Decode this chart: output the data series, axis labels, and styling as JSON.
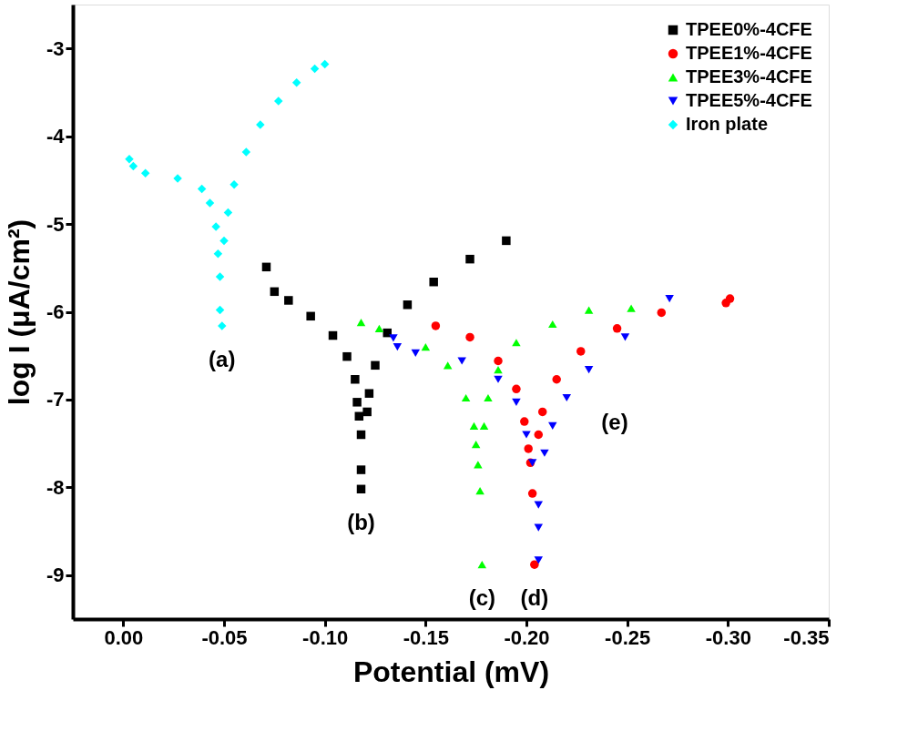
{
  "chart_data": {
    "type": "scatter",
    "xlabel": "Potential (mV)",
    "ylabel": "log I (μA/cm²)",
    "xlim": [
      0.025,
      -0.35
    ],
    "ylim": [
      -9.5,
      -2.5
    ],
    "xticks": [
      {
        "value": 0,
        "label": "0.00"
      },
      {
        "value": -0.05,
        "label": "-0.05"
      },
      {
        "value": -0.1,
        "label": "-0.10"
      },
      {
        "value": -0.15,
        "label": "-0.15"
      },
      {
        "value": -0.2,
        "label": "-0.20"
      },
      {
        "value": -0.25,
        "label": "-0.25"
      },
      {
        "value": -0.3,
        "label": "-0.30"
      },
      {
        "value": -0.35,
        "label": "-0.35"
      }
    ],
    "yticks": [
      -3,
      -4,
      -5,
      -6,
      -7,
      -8,
      -9
    ],
    "grid": false,
    "legend": "top right",
    "series": [
      {
        "name": "TPEE0%-4CFE",
        "color": "#000000",
        "marker": "square",
        "x": [
          -0.071,
          -0.075,
          -0.082,
          -0.093,
          -0.104,
          -0.111,
          -0.115,
          -0.116,
          -0.117,
          -0.118,
          -0.118,
          -0.118,
          -0.121,
          -0.122,
          -0.125,
          -0.131,
          -0.141,
          -0.154,
          -0.172,
          -0.19
        ],
        "values": [
          -5.49,
          -5.77,
          -5.87,
          -6.05,
          -6.27,
          -6.51,
          -6.77,
          -7.03,
          -7.19,
          -7.4,
          -7.8,
          -8.02,
          -7.14,
          -6.93,
          -6.61,
          -6.24,
          -5.92,
          -5.66,
          -5.4,
          -5.19
        ]
      },
      {
        "name": "TPEE1%-4CFE",
        "color": "#ff0000",
        "marker": "circle",
        "x": [
          -0.155,
          -0.172,
          -0.186,
          -0.195,
          -0.199,
          -0.201,
          -0.202,
          -0.203,
          -0.204,
          -0.206,
          -0.208,
          -0.215,
          -0.227,
          -0.245,
          -0.267,
          -0.299,
          -0.301
        ],
        "values": [
          -6.16,
          -6.29,
          -6.56,
          -6.88,
          -7.25,
          -7.56,
          -7.72,
          -8.07,
          -8.88,
          -7.4,
          -7.14,
          -6.77,
          -6.45,
          -6.19,
          -6.01,
          -5.9,
          -5.85
        ]
      },
      {
        "name": "TPEE3%-4CFE",
        "color": "#00ff00",
        "marker": "triangle",
        "x": [
          -0.118,
          -0.127,
          -0.15,
          -0.161,
          -0.17,
          -0.174,
          -0.175,
          -0.176,
          -0.177,
          -0.178,
          -0.179,
          -0.181,
          -0.186,
          -0.195,
          -0.213,
          -0.231,
          -0.252
        ],
        "values": [
          -6.12,
          -6.19,
          -6.4,
          -6.61,
          -6.98,
          -7.3,
          -7.51,
          -7.74,
          -8.04,
          -8.88,
          -7.3,
          -6.98,
          -6.66,
          -6.35,
          -6.14,
          -5.98,
          -5.96
        ]
      },
      {
        "name": "TPEE5%-4CFE",
        "color": "#0000ff",
        "marker": "triangle-down",
        "x": [
          -0.134,
          -0.136,
          -0.145,
          -0.168,
          -0.186,
          -0.195,
          -0.2,
          -0.203,
          -0.206,
          -0.206,
          -0.206,
          -0.209,
          -0.213,
          -0.22,
          -0.231,
          -0.249,
          -0.271
        ],
        "values": [
          -6.3,
          -6.4,
          -6.47,
          -6.56,
          -6.77,
          -7.03,
          -7.4,
          -7.72,
          -8.2,
          -8.46,
          -8.83,
          -7.61,
          -7.3,
          -6.98,
          -6.66,
          -6.29,
          -5.85
        ]
      },
      {
        "name": "Iron plate",
        "color": "#00ffff",
        "marker": "diamond",
        "x": [
          -0.003,
          -0.005,
          -0.011,
          -0.027,
          -0.039,
          -0.043,
          -0.046,
          -0.047,
          -0.048,
          -0.048,
          -0.049,
          -0.05,
          -0.052,
          -0.055,
          -0.061,
          -0.068,
          -0.077,
          -0.086,
          -0.095,
          -0.1
        ],
        "values": [
          -4.26,
          -4.34,
          -4.42,
          -4.48,
          -4.6,
          -4.76,
          -5.03,
          -5.34,
          -5.6,
          -5.98,
          -6.16,
          -5.19,
          -4.87,
          -4.55,
          -4.18,
          -3.87,
          -3.6,
          -3.39,
          -3.23,
          -3.18
        ]
      }
    ],
    "annotations": [
      {
        "text": "(a)",
        "x": -0.049,
        "y": -6.16
      },
      {
        "text": "(b)",
        "x": -0.118,
        "y": -8.02
      },
      {
        "text": "(c)",
        "x": -0.178,
        "y": -8.88
      },
      {
        "text": "(d)",
        "x": -0.204,
        "y": -8.88
      },
      "(e)"
    ]
  }
}
